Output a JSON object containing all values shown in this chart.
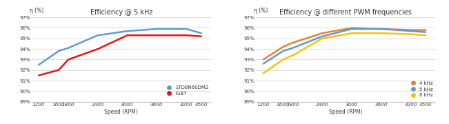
{
  "speed": [
    1200,
    1600,
    1800,
    2400,
    3000,
    3600,
    4200,
    4500
  ],
  "chart1_title": "Efficiency @ 5 kHz",
  "chart1_blue": [
    92.5,
    93.8,
    94.1,
    95.3,
    95.7,
    95.9,
    95.9,
    95.5
  ],
  "chart1_red": [
    91.5,
    92.0,
    93.0,
    94.0,
    95.3,
    95.3,
    95.3,
    95.2
  ],
  "chart1_blue_color": "#5B9BD5",
  "chart1_red_color": "#EE1111",
  "chart1_legend": [
    "STD8N60DM2",
    "IGBT"
  ],
  "chart2_title": "Efficiency @ different PWM frequencies",
  "chart2_orange": [
    93.0,
    94.2,
    94.6,
    95.5,
    96.0,
    95.9,
    95.8,
    95.8
  ],
  "chart2_blue": [
    92.6,
    93.8,
    94.1,
    95.2,
    95.9,
    95.9,
    95.7,
    95.6
  ],
  "chart2_yellow": [
    91.7,
    93.0,
    93.4,
    95.0,
    95.5,
    95.5,
    95.4,
    95.3
  ],
  "chart2_orange_color": "#ED7D31",
  "chart2_blue_color": "#5B9BD5",
  "chart2_yellow_color": "#FFC000",
  "chart2_legend": [
    "4 kHz",
    "5 kHz",
    "6 kHz"
  ],
  "ylabel": "η (%)",
  "xlabel": "Speed (RPM)",
  "ylim": [
    89,
    97
  ],
  "yticks": [
    89,
    90,
    91,
    92,
    93,
    94,
    95,
    96,
    97
  ],
  "ytick_labels": [
    "89%",
    "90%",
    "91%",
    "92%",
    "93%",
    "94%",
    "95%",
    "96%",
    "97%"
  ],
  "xtick_labels": [
    "1200",
    "1600",
    "1800",
    "2400",
    "3000",
    "3600",
    "4200",
    "4500"
  ],
  "bg_color": "#FFFFFF",
  "grid_color": "#CCCCCC",
  "linewidth": 1.8,
  "title_fontsize": 7.0,
  "tick_fontsize": 5.2,
  "label_fontsize": 5.5
}
